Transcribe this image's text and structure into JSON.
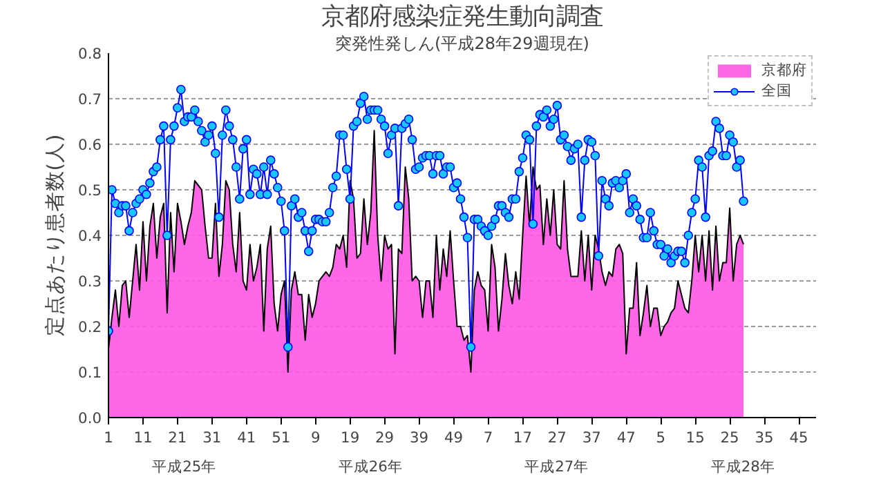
{
  "chart_data": {
    "type": "area",
    "title": "京都府感染症発生動向調査",
    "subtitle": "突発性発しん(平成28年29週現在)",
    "ylabel": "定点あたり患者数(人)",
    "categories": [
      "1",
      null,
      null,
      null,
      null,
      null,
      null,
      null,
      null,
      null,
      "11",
      null,
      null,
      null,
      null,
      null,
      null,
      null,
      null,
      null,
      "21",
      null,
      null,
      null,
      null,
      null,
      null,
      null,
      null,
      null,
      "31",
      null,
      null,
      null,
      null,
      null,
      null,
      null,
      null,
      null,
      "41",
      null,
      null,
      null,
      null,
      null,
      null,
      null,
      null,
      null,
      "51",
      null,
      null,
      null,
      null,
      null,
      null,
      null,
      null,
      null,
      "9",
      null,
      null,
      null,
      null,
      null,
      null,
      null,
      null,
      null,
      "19",
      null,
      null,
      null,
      null,
      null,
      null,
      null,
      null,
      null,
      "29",
      null,
      null,
      null,
      null,
      null,
      null,
      null,
      null,
      null,
      "39",
      null,
      null,
      null,
      null,
      null,
      null,
      null,
      null,
      null,
      "49",
      null,
      null,
      null,
      null,
      null,
      null,
      null,
      null,
      null,
      "7",
      null,
      null,
      null,
      null,
      null,
      null,
      null,
      null,
      null,
      "17",
      null,
      null,
      null,
      null,
      null,
      null,
      null,
      null,
      null,
      "27",
      null,
      null,
      null,
      null,
      null,
      null,
      null,
      null,
      null,
      "37",
      null,
      null,
      null,
      null,
      null,
      null,
      null,
      null,
      null,
      "47",
      null,
      null,
      null,
      null,
      null,
      null,
      null,
      null,
      null,
      "5",
      null,
      null,
      null,
      null,
      null,
      null,
      null,
      null,
      null,
      "15",
      null,
      null,
      null,
      null,
      null,
      null,
      null,
      null,
      null,
      "25",
      null,
      null,
      null,
      null,
      null,
      null,
      null,
      null,
      null,
      "35",
      null,
      null,
      null,
      null,
      null,
      null,
      null,
      null,
      null,
      "45",
      null,
      null,
      null,
      null,
      null
    ],
    "series": [
      {
        "name": "京都府",
        "color": "#ff55e6",
        "values": [
          0.15,
          0.22,
          0.28,
          0.2,
          0.29,
          0.3,
          0.22,
          0.3,
          0.38,
          0.28,
          0.43,
          0.3,
          0.42,
          0.47,
          0.35,
          0.44,
          0.47,
          0.23,
          0.45,
          0.32,
          0.47,
          0.43,
          0.38,
          0.42,
          0.45,
          0.52,
          0.51,
          0.5,
          0.42,
          0.35,
          0.35,
          0.47,
          0.31,
          0.38,
          0.52,
          0.5,
          0.38,
          0.32,
          0.45,
          0.3,
          0.28,
          0.38,
          0.3,
          0.33,
          0.38,
          0.19,
          0.37,
          0.42,
          0.25,
          0.19,
          0.27,
          0.3,
          0.1,
          0.28,
          0.32,
          0.27,
          0.27,
          0.17,
          0.27,
          0.22,
          0.25,
          0.3,
          0.31,
          0.32,
          0.31,
          0.33,
          0.38,
          0.37,
          0.4,
          0.33,
          0.52,
          0.48,
          0.35,
          0.36,
          0.48,
          0.38,
          0.45,
          0.63,
          0.4,
          0.3,
          0.4,
          0.37,
          0.38,
          0.14,
          0.37,
          0.36,
          0.55,
          0.48,
          0.3,
          0.31,
          0.3,
          0.22,
          0.3,
          0.3,
          0.22,
          0.4,
          0.28,
          0.37,
          0.31,
          0.41,
          0.3,
          0.2,
          0.2,
          0.17,
          0.18,
          0.1,
          0.28,
          0.32,
          0.29,
          0.28,
          0.19,
          0.38,
          0.33,
          0.19,
          0.26,
          0.36,
          0.29,
          0.25,
          0.32,
          0.26,
          0.4,
          0.53,
          0.42,
          0.55,
          0.5,
          0.51,
          0.38,
          0.48,
          0.4,
          0.5,
          0.38,
          0.37,
          0.52,
          0.37,
          0.31,
          0.31,
          0.31,
          0.41,
          0.3,
          0.4,
          0.28,
          0.4,
          0.37,
          0.32,
          0.29,
          0.32,
          0.31,
          0.37,
          0.38,
          0.36,
          0.14,
          0.24,
          0.24,
          0.34,
          0.18,
          0.23,
          0.29,
          0.2,
          0.24,
          0.24,
          0.18,
          0.2,
          0.21,
          0.23,
          0.24,
          0.3,
          0.27,
          0.24,
          0.23,
          0.3,
          0.4,
          0.32,
          0.4,
          0.3,
          0.41,
          0.28,
          0.42,
          0.3,
          0.34,
          0.34,
          0.46,
          0.3,
          0.38,
          0.4,
          0.38,
          null,
          null,
          null,
          null,
          null,
          null,
          null,
          null,
          null,
          null,
          null,
          null,
          null,
          null,
          null,
          null,
          null,
          null,
          null,
          null,
          null
        ]
      },
      {
        "name": "全国",
        "type": "line",
        "color": "#0000ff",
        "marker": "circle",
        "values": [
          0.19,
          0.5,
          0.47,
          0.45,
          0.465,
          0.465,
          0.41,
          0.45,
          0.47,
          0.48,
          0.5,
          0.49,
          0.515,
          0.54,
          0.55,
          0.61,
          0.64,
          0.4,
          0.61,
          0.64,
          0.68,
          0.72,
          0.65,
          0.66,
          0.66,
          0.675,
          0.65,
          0.63,
          0.605,
          0.62,
          0.64,
          0.58,
          0.44,
          0.62,
          0.675,
          0.64,
          0.61,
          0.55,
          0.48,
          0.59,
          0.61,
          0.49,
          0.545,
          0.535,
          0.49,
          0.55,
          0.49,
          0.565,
          0.535,
          0.505,
          0.475,
          0.41,
          0.155,
          0.465,
          0.48,
          0.44,
          0.45,
          0.41,
          0.365,
          0.41,
          0.435,
          0.435,
          0.43,
          0.43,
          0.45,
          0.505,
          0.53,
          0.62,
          0.62,
          0.545,
          0.48,
          0.64,
          0.65,
          0.69,
          0.705,
          0.655,
          0.675,
          0.675,
          0.675,
          0.655,
          0.64,
          0.58,
          0.62,
          0.635,
          0.465,
          0.635,
          0.645,
          0.655,
          0.61,
          0.545,
          0.55,
          0.57,
          0.575,
          0.575,
          0.535,
          0.575,
          0.575,
          0.535,
          0.55,
          0.55,
          0.505,
          0.515,
          0.48,
          0.44,
          0.395,
          0.155,
          0.435,
          0.435,
          0.42,
          0.41,
          0.4,
          0.42,
          0.435,
          0.465,
          0.465,
          0.45,
          0.44,
          0.48,
          0.48,
          0.54,
          0.57,
          0.62,
          0.61,
          0.425,
          0.64,
          0.665,
          0.66,
          0.675,
          0.64,
          0.655,
          0.685,
          0.61,
          0.62,
          0.595,
          0.565,
          0.59,
          0.6,
          0.44,
          0.565,
          0.61,
          0.605,
          0.575,
          0.355,
          0.52,
          0.48,
          0.465,
          0.515,
          0.52,
          0.505,
          0.52,
          0.535,
          0.45,
          0.48,
          0.465,
          0.435,
          0.395,
          0.395,
          0.45,
          0.41,
          0.38,
          0.38,
          0.355,
          0.37,
          0.34,
          0.355,
          0.365,
          0.365,
          0.34,
          0.4,
          0.45,
          0.48,
          0.565,
          0.55,
          0.44,
          0.575,
          0.585,
          0.65,
          0.635,
          0.575,
          0.575,
          0.62,
          0.605,
          0.55,
          0.565,
          0.475,
          null,
          null,
          null,
          null,
          null,
          null,
          null,
          null,
          null,
          null,
          null,
          null,
          null,
          null,
          null,
          null,
          null,
          null,
          null,
          null,
          null
        ]
      }
    ],
    "ylim": [
      0,
      0.8
    ],
    "yticks": [
      {
        "value": 0,
        "label": "0.0"
      },
      0.1,
      0.2,
      0.3,
      0.4,
      0.5,
      0.6,
      0.7,
      0.8
    ],
    "grid": "y",
    "legend": "top right",
    "annotations": [
      "平成25年",
      "平成26年",
      "平成27年",
      "平成28年"
    ]
  }
}
